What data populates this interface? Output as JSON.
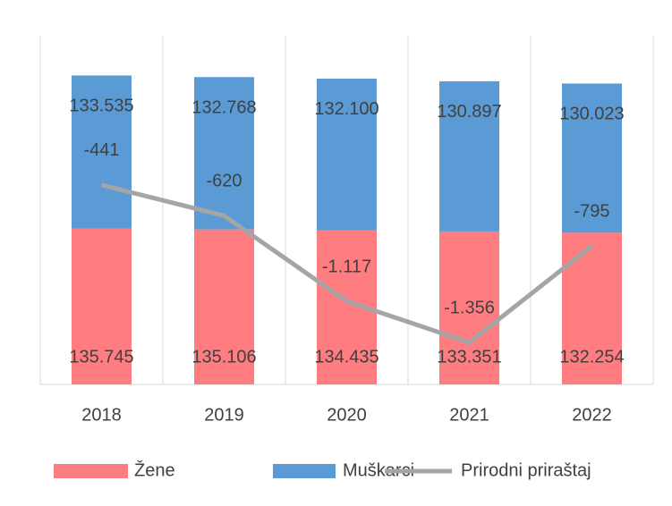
{
  "chart_data": {
    "type": "bar",
    "stacked": true,
    "categories": [
      "2018",
      "2019",
      "2020",
      "2021",
      "2022"
    ],
    "ylim": [
      0,
      300000
    ],
    "y2lim": [
      -1600,
      400
    ],
    "series": [
      {
        "name": "Žene",
        "color": "#ff7c80",
        "values": [
          135745,
          135106,
          134435,
          133351,
          132254
        ],
        "value_labels": [
          "135.745",
          "135.106",
          "134.435",
          "133.351",
          "132.254"
        ]
      },
      {
        "name": "Muškarci",
        "color": "#5b9bd5",
        "values": [
          133535,
          132768,
          132100,
          130897,
          130023
        ],
        "value_labels": [
          "133.535",
          "132.768",
          "132.100",
          "130.897",
          "130.023"
        ]
      },
      {
        "name": "Prirodni priraštaj",
        "type": "line",
        "axis": "y2",
        "color": "#a5a5a5",
        "values": [
          -441,
          -620,
          -1117,
          -1356,
          -795
        ],
        "value_labels": [
          "-441",
          "-620",
          "-1.117",
          "-1.356",
          "-795"
        ]
      }
    ]
  }
}
